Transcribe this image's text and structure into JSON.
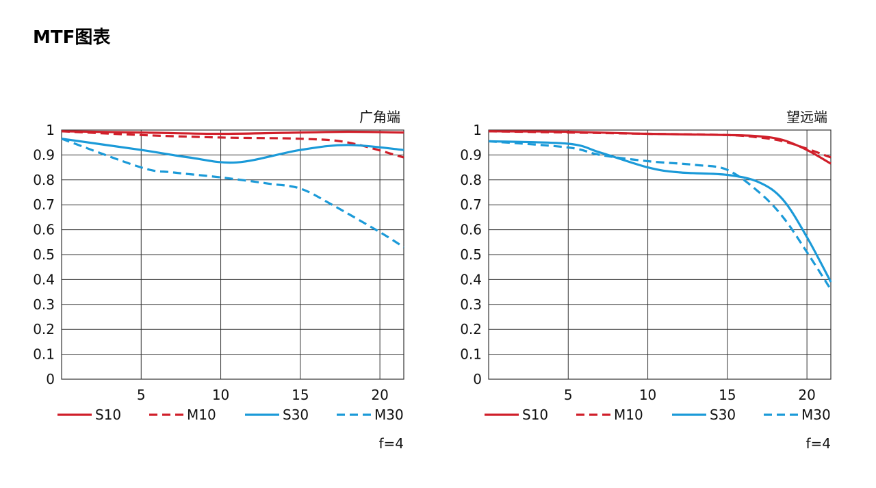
{
  "page": {
    "title": "MTF图表"
  },
  "colors": {
    "red": "#d01f2a",
    "blue": "#1b9ad8",
    "grid": "#333333"
  },
  "chart_data": [
    {
      "type": "line",
      "title": "广角端",
      "aperture_label": "f=4",
      "xlim": [
        0,
        21.5
      ],
      "ylim": [
        0,
        1
      ],
      "x_ticks": [
        5,
        10,
        15,
        20
      ],
      "y_ticks": [
        0,
        0.1,
        0.2,
        0.3,
        0.4,
        0.5,
        0.6,
        0.7,
        0.8,
        0.9,
        1
      ],
      "y_tick_labels": [
        "0",
        "0.1",
        "0.2",
        "0.3",
        "0.4",
        "0.5",
        "0.6",
        "0.7",
        "0.8",
        "0.9",
        "1"
      ],
      "grid": true,
      "legend_position": "bottom",
      "series": [
        {
          "name": "S10",
          "color": "red",
          "dashed": false,
          "x": [
            0,
            5,
            10,
            15,
            18,
            21.5
          ],
          "y": [
            0.995,
            0.99,
            0.985,
            0.99,
            0.993,
            0.99
          ]
        },
        {
          "name": "M10",
          "color": "red",
          "dashed": true,
          "x": [
            0,
            5,
            10,
            15,
            18,
            21.5
          ],
          "y": [
            0.995,
            0.98,
            0.97,
            0.965,
            0.95,
            0.89
          ]
        },
        {
          "name": "S30",
          "color": "blue",
          "dashed": false,
          "x": [
            0,
            5,
            8,
            11,
            15,
            18,
            21.5
          ],
          "y": [
            0.965,
            0.92,
            0.89,
            0.87,
            0.92,
            0.94,
            0.92
          ]
        },
        {
          "name": "M30",
          "color": "blue",
          "dashed": true,
          "x": [
            0,
            5,
            7,
            10,
            13,
            15,
            17,
            20,
            21.5
          ],
          "y": [
            0.965,
            0.85,
            0.83,
            0.81,
            0.785,
            0.765,
            0.7,
            0.59,
            0.53
          ]
        }
      ]
    },
    {
      "type": "line",
      "title": "望远端",
      "aperture_label": "f=4",
      "xlim": [
        0,
        21.5
      ],
      "ylim": [
        0,
        1
      ],
      "x_ticks": [
        5,
        10,
        15,
        20
      ],
      "y_ticks": [
        0,
        0.1,
        0.2,
        0.3,
        0.4,
        0.5,
        0.6,
        0.7,
        0.8,
        0.9,
        1
      ],
      "y_tick_labels": [
        "0",
        "0.1",
        "0.2",
        "0.3",
        "0.4",
        "0.5",
        "0.6",
        "0.7",
        "0.8",
        "0.9",
        "1"
      ],
      "grid": true,
      "legend_position": "bottom",
      "series": [
        {
          "name": "S10",
          "color": "red",
          "dashed": false,
          "x": [
            0,
            5,
            10,
            15,
            17,
            18.5,
            20,
            21.5
          ],
          "y": [
            0.995,
            0.993,
            0.985,
            0.98,
            0.975,
            0.96,
            0.92,
            0.865
          ]
        },
        {
          "name": "M10",
          "color": "red",
          "dashed": true,
          "x": [
            0,
            5,
            10,
            15,
            17,
            18.5,
            20,
            21.5
          ],
          "y": [
            0.995,
            0.99,
            0.985,
            0.98,
            0.97,
            0.955,
            0.925,
            0.89
          ]
        },
        {
          "name": "S30",
          "color": "blue",
          "dashed": false,
          "x": [
            0,
            5,
            7,
            10,
            12,
            15,
            17,
            18.5,
            20,
            21.5
          ],
          "y": [
            0.955,
            0.945,
            0.91,
            0.85,
            0.83,
            0.82,
            0.79,
            0.72,
            0.57,
            0.39
          ]
        },
        {
          "name": "M30",
          "color": "blue",
          "dashed": true,
          "x": [
            0,
            5,
            7,
            10,
            13,
            15,
            17,
            18.5,
            20,
            21.5
          ],
          "y": [
            0.955,
            0.93,
            0.9,
            0.875,
            0.86,
            0.84,
            0.75,
            0.65,
            0.51,
            0.36
          ]
        }
      ]
    }
  ]
}
